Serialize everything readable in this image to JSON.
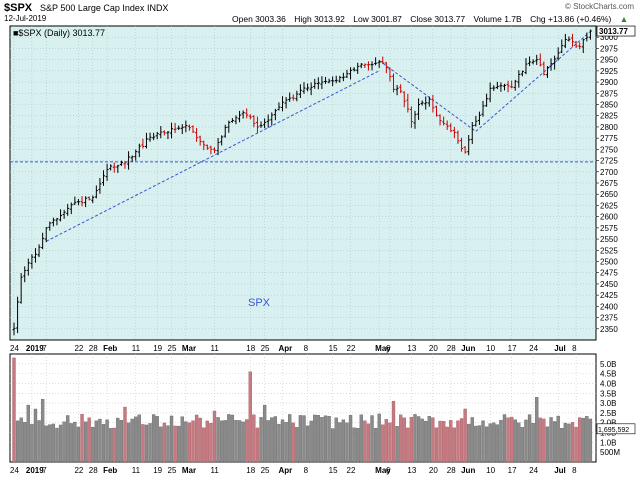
{
  "header": {
    "symbol": "$SPX",
    "name": "S&P 500 Large Cap Index",
    "exchange": "INDX",
    "date": "12-Jul-2019",
    "credit": "© StockCharts.com",
    "open": "Open 3003.36",
    "high": "High 3013.92",
    "low": "Low 3001.87",
    "close": "Close 3013.77",
    "volume": "Volume 1.7B",
    "change": "Chg +13.86 (+0.46%)",
    "change_arrow": "▲"
  },
  "chart_data": [
    {
      "type": "ohlc",
      "legend": "■$SPX (Daily) 3013.77",
      "last_price_label": "3013.77",
      "watermark": "SPX",
      "ylim": [
        2325,
        3025
      ],
      "y_ticks": [
        2350,
        2375,
        2400,
        2425,
        2450,
        2475,
        2500,
        2525,
        2550,
        2575,
        2600,
        2625,
        2650,
        2675,
        2700,
        2725,
        2750,
        2775,
        2800,
        2825,
        2850,
        2875,
        2900,
        2925,
        2950,
        2975,
        3000
      ],
      "x_tick_labels": [
        {
          "day": 0,
          "label": "24",
          "bold": false
        },
        {
          "day": 5,
          "label": "2019",
          "bold": true
        },
        {
          "day": 9,
          "label": "7",
          "bold": false
        },
        {
          "day": 18,
          "label": "22",
          "bold": false
        },
        {
          "day": 22,
          "label": "28",
          "bold": false
        },
        {
          "day": 26,
          "label": "Feb",
          "bold": true
        },
        {
          "day": 34,
          "label": "11",
          "bold": false
        },
        {
          "day": 40,
          "label": "19",
          "bold": false
        },
        {
          "day": 44,
          "label": "25",
          "bold": false
        },
        {
          "day": 48,
          "label": "Mar",
          "bold": true
        },
        {
          "day": 56,
          "label": "11",
          "bold": false
        },
        {
          "day": 66,
          "label": "18",
          "bold": false
        },
        {
          "day": 70,
          "label": "25",
          "bold": false
        },
        {
          "day": 75,
          "label": "Apr",
          "bold": true
        },
        {
          "day": 82,
          "label": "8",
          "bold": false
        },
        {
          "day": 89,
          "label": "15",
          "bold": false
        },
        {
          "day": 94,
          "label": "22",
          "bold": false
        },
        {
          "day": 102,
          "label": "May",
          "bold": true
        },
        {
          "day": 105,
          "label": "6",
          "bold": false
        },
        {
          "day": 111,
          "label": "13",
          "bold": false
        },
        {
          "day": 117,
          "label": "20",
          "bold": false
        },
        {
          "day": 122,
          "label": "28",
          "bold": false
        },
        {
          "day": 126,
          "label": "Jun",
          "bold": true
        },
        {
          "day": 133,
          "label": "10",
          "bold": false
        },
        {
          "day": 139,
          "label": "17",
          "bold": false
        },
        {
          "day": 145,
          "label": "24",
          "bold": false
        },
        {
          "day": 152,
          "label": "Jul",
          "bold": true
        },
        {
          "day": 157,
          "label": "8",
          "bold": false
        }
      ],
      "trend_lines": [
        {
          "from": [
            9,
            2545
          ],
          "to": [
            102,
            2925
          ]
        },
        {
          "from": [
            102,
            2948
          ],
          "to": [
            129,
            2790
          ]
        },
        {
          "from": [
            129,
            2790
          ],
          "to": [
            161,
            3013
          ]
        }
      ],
      "horizontal_lines": [
        2722
      ],
      "anchors": [
        {
          "day": 0,
          "close": 2351
        },
        {
          "day": 2,
          "close": 2465
        },
        {
          "day": 5,
          "close": 2510
        },
        {
          "day": 7,
          "close": 2532
        },
        {
          "day": 9,
          "close": 2575
        },
        {
          "day": 14,
          "close": 2610
        },
        {
          "day": 18,
          "close": 2633
        },
        {
          "day": 22,
          "close": 2643
        },
        {
          "day": 26,
          "close": 2705
        },
        {
          "day": 31,
          "close": 2720
        },
        {
          "day": 34,
          "close": 2745
        },
        {
          "day": 38,
          "close": 2777
        },
        {
          "day": 44,
          "close": 2796
        },
        {
          "day": 48,
          "close": 2803
        },
        {
          "day": 53,
          "close": 2760
        },
        {
          "day": 56,
          "close": 2748
        },
        {
          "day": 60,
          "close": 2810
        },
        {
          "day": 64,
          "close": 2832
        },
        {
          "day": 66,
          "close": 2822
        },
        {
          "day": 68,
          "close": 2800
        },
        {
          "day": 70,
          "close": 2810
        },
        {
          "day": 75,
          "close": 2855
        },
        {
          "day": 82,
          "close": 2887
        },
        {
          "day": 86,
          "close": 2900
        },
        {
          "day": 90,
          "close": 2904
        },
        {
          "day": 96,
          "close": 2935
        },
        {
          "day": 101,
          "close": 2942
        },
        {
          "day": 102,
          "close": 2945
        },
        {
          "day": 104,
          "close": 2932
        },
        {
          "day": 106,
          "close": 2884
        },
        {
          "day": 108,
          "close": 2880
        },
        {
          "day": 110,
          "close": 2840
        },
        {
          "day": 111,
          "close": 2812
        },
        {
          "day": 113,
          "close": 2850
        },
        {
          "day": 116,
          "close": 2862
        },
        {
          "day": 118,
          "close": 2826
        },
        {
          "day": 121,
          "close": 2802
        },
        {
          "day": 123,
          "close": 2788
        },
        {
          "day": 125,
          "close": 2752
        },
        {
          "day": 126,
          "close": 2744
        },
        {
          "day": 128,
          "close": 2803
        },
        {
          "day": 130,
          "close": 2826
        },
        {
          "day": 133,
          "close": 2886
        },
        {
          "day": 136,
          "close": 2892
        },
        {
          "day": 139,
          "close": 2889
        },
        {
          "day": 141,
          "close": 2917
        },
        {
          "day": 144,
          "close": 2945
        },
        {
          "day": 146,
          "close": 2950
        },
        {
          "day": 148,
          "close": 2917
        },
        {
          "day": 150,
          "close": 2941
        },
        {
          "day": 152,
          "close": 2965
        },
        {
          "day": 154,
          "close": 2995
        },
        {
          "day": 156,
          "close": 2990
        },
        {
          "day": 158,
          "close": 2979
        },
        {
          "day": 160,
          "close": 3000
        },
        {
          "day": 161,
          "close": 3013.77
        }
      ]
    },
    {
      "type": "volume_bar",
      "ylim_billions": [
        0,
        5.5
      ],
      "y_tick_labels": [
        {
          "value": 0.5,
          "label": "500M"
        },
        {
          "value": 1.0,
          "label": "1.0B"
        },
        {
          "value": 1.5,
          "label": "1.5B"
        },
        {
          "value": 2.0,
          "label": "2.0B"
        },
        {
          "value": 2.5,
          "label": "2.5B"
        },
        {
          "value": 3.0,
          "label": "3.0B"
        },
        {
          "value": 3.5,
          "label": "3.5B"
        },
        {
          "value": 4.0,
          "label": "4.0B"
        },
        {
          "value": 4.5,
          "label": "4.5B"
        },
        {
          "value": 5.0,
          "label": "5.0B"
        }
      ],
      "last_value_label": "1,695,592",
      "spikes": [
        {
          "day": 0,
          "value": 5.3
        },
        {
          "day": 4,
          "value": 2.9
        },
        {
          "day": 6,
          "value": 2.7
        },
        {
          "day": 8,
          "value": 3.2
        },
        {
          "day": 31,
          "value": 2.8
        },
        {
          "day": 56,
          "value": 2.6
        },
        {
          "day": 66,
          "value": 4.6
        },
        {
          "day": 70,
          "value": 2.9
        },
        {
          "day": 106,
          "value": 3.1
        },
        {
          "day": 126,
          "value": 2.7
        },
        {
          "day": 146,
          "value": 3.3
        }
      ]
    }
  ]
}
